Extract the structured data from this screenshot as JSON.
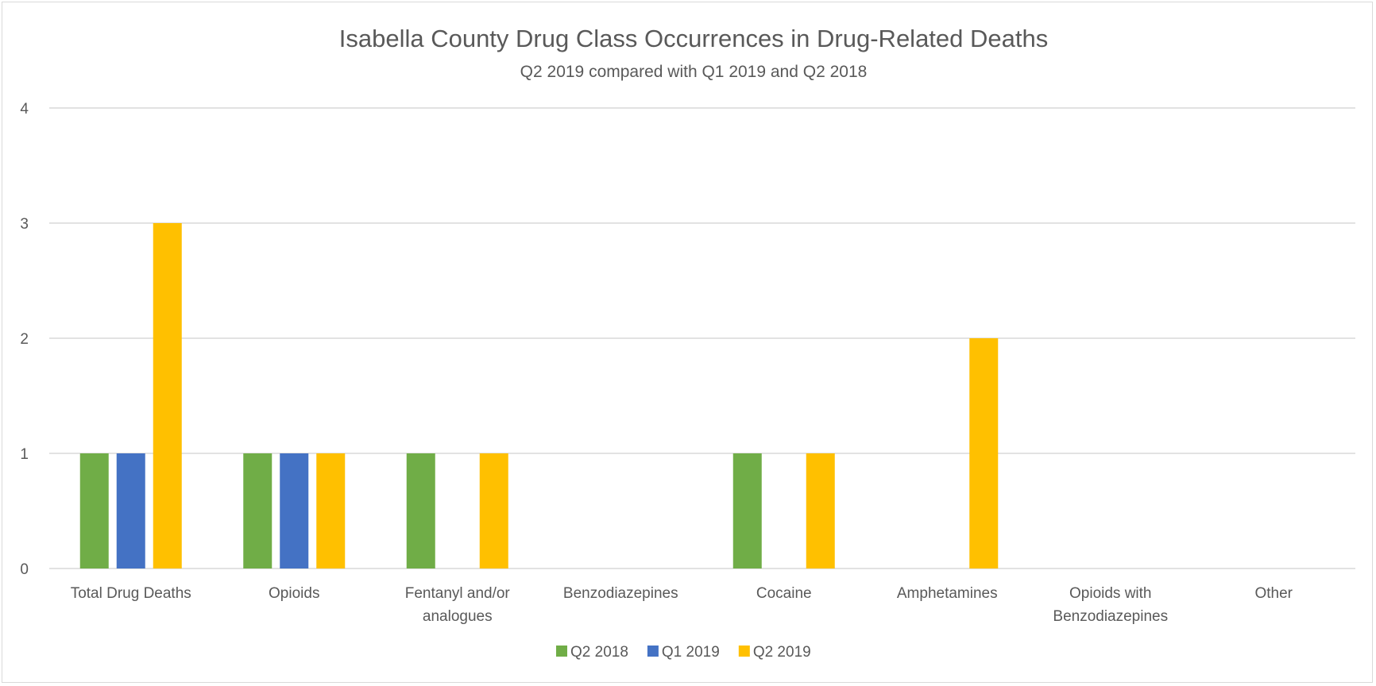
{
  "chart_data": {
    "type": "bar",
    "title": "Isabella County Drug Class Occurrences in Drug-Related Deaths",
    "subtitle": "Q2 2019 compared with Q1 2019 and Q2 2018",
    "categories": [
      [
        "Total Drug Deaths"
      ],
      [
        "Opioids"
      ],
      [
        "Fentanyl and/or",
        "analogues"
      ],
      [
        "Benzodiazepines"
      ],
      [
        "Cocaine"
      ],
      [
        "Amphetamines"
      ],
      [
        "Opioids with",
        "Benzodiazepines"
      ],
      [
        "Other"
      ]
    ],
    "series": [
      {
        "name": "Q2 2018",
        "color": "#70ad47",
        "values": [
          1,
          1,
          1,
          0,
          1,
          0,
          0,
          0
        ]
      },
      {
        "name": "Q1 2019",
        "color": "#4472c4",
        "values": [
          1,
          1,
          0,
          0,
          0,
          0,
          0,
          0
        ]
      },
      {
        "name": "Q2 2019",
        "color": "#ffc000",
        "values": [
          3,
          1,
          1,
          0,
          1,
          2,
          0,
          0
        ]
      }
    ],
    "ylim": [
      0,
      4
    ],
    "yticks": [
      0,
      1,
      2,
      3,
      4
    ],
    "grid": true,
    "legend": "bottom"
  }
}
